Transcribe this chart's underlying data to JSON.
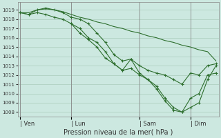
{
  "background_color": "#cce8e0",
  "grid_color": "#aaccbb",
  "line_color": "#2d6e2d",
  "marker_color": "#2d6e2d",
  "title": "Pression niveau de la mer( hPa )",
  "ylim": [
    1007.5,
    1019.8
  ],
  "yticks": [
    1008,
    1009,
    1010,
    1011,
    1012,
    1013,
    1014,
    1015,
    1016,
    1017,
    1018,
    1019
  ],
  "xlim": [
    -0.3,
    23.3
  ],
  "xlabel_ticks": [
    "| Ven",
    "| Lun",
    "| Sam",
    "| Dim"
  ],
  "xlabel_tick_positions": [
    0,
    6,
    14,
    20
  ],
  "vlines": [
    0,
    6,
    14,
    20
  ],
  "series1_nomarker": {
    "x": [
      0,
      1,
      2,
      3,
      4,
      5,
      6,
      7,
      8,
      9,
      10,
      11,
      12,
      13,
      14,
      15,
      16,
      17,
      18,
      19,
      20,
      21,
      22,
      23
    ],
    "y": [
      1018.7,
      1018.7,
      1019.0,
      1019.1,
      1019.0,
      1018.8,
      1018.5,
      1018.2,
      1018.0,
      1017.7,
      1017.5,
      1017.2,
      1017.0,
      1016.7,
      1016.5,
      1016.2,
      1016.0,
      1015.7,
      1015.5,
      1015.2,
      1015.0,
      1014.7,
      1014.5,
      1013.5
    ]
  },
  "series2_marker": {
    "x": [
      0,
      1,
      2,
      3,
      4,
      5,
      6,
      7,
      8,
      9,
      10,
      11,
      12,
      13,
      14,
      15,
      16,
      17,
      18,
      19,
      20,
      21,
      22,
      23
    ],
    "y": [
      1018.7,
      1018.5,
      1019.0,
      1019.2,
      1019.0,
      1018.7,
      1018.2,
      1018.0,
      1017.5,
      1016.5,
      1015.5,
      1014.2,
      1013.5,
      1013.7,
      1013.0,
      1012.5,
      1012.2,
      1012.0,
      1011.5,
      1011.0,
      1012.2,
      1012.0,
      1013.0,
      1013.2
    ]
  },
  "series3_marker": {
    "x": [
      0,
      1,
      2,
      3,
      4,
      5,
      6,
      7,
      8,
      9,
      10,
      11,
      12,
      13,
      14,
      15,
      16,
      17,
      18,
      19,
      20,
      21,
      22,
      23
    ],
    "y": [
      1018.7,
      1018.5,
      1018.7,
      1018.5,
      1018.2,
      1018.0,
      1017.5,
      1017.0,
      1016.0,
      1015.5,
      1014.5,
      1013.2,
      1012.5,
      1012.7,
      1012.0,
      1011.5,
      1010.8,
      1009.5,
      1008.5,
      1008.0,
      1009.5,
      1010.0,
      1012.0,
      1012.2
    ]
  },
  "series4_marker": {
    "x": [
      6,
      7,
      8,
      9,
      10,
      11,
      12,
      13,
      14,
      15,
      16,
      17,
      18,
      19,
      20,
      21,
      22,
      23
    ],
    "y": [
      1017.5,
      1016.5,
      1015.8,
      1015.0,
      1013.8,
      1013.2,
      1012.5,
      1013.7,
      1012.2,
      1011.5,
      1010.5,
      1009.2,
      1008.2,
      1008.0,
      1008.5,
      1009.0,
      1011.5,
      1013.0
    ]
  }
}
